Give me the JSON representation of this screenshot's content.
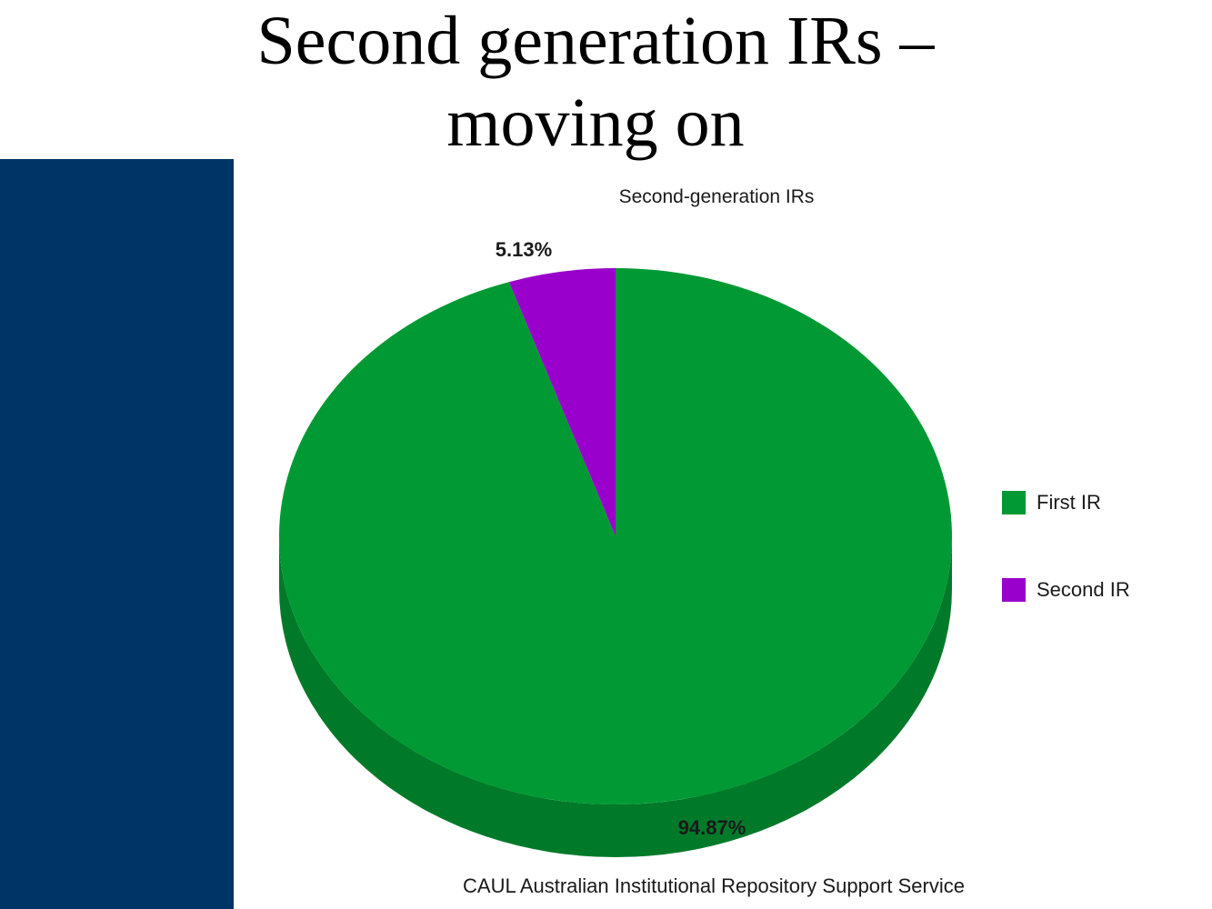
{
  "slide": {
    "title_line1": "Second generation IRs –",
    "title_line2": "moving on",
    "sidebar_color": "#003366"
  },
  "chart_data": {
    "type": "pie",
    "title": "Second-generation IRs",
    "style": "3d",
    "legend_position": "right",
    "categories": [
      "First IR",
      "Second IR"
    ],
    "values": [
      94.87,
      5.13
    ],
    "labels": [
      "94.87%",
      "5.13%"
    ],
    "colors": [
      "#009933",
      "#9900cc"
    ],
    "side_colors": [
      "#007a29",
      "#7a00a3"
    ]
  },
  "source_text": "CAUL Australian Institutional Repository Support Service"
}
